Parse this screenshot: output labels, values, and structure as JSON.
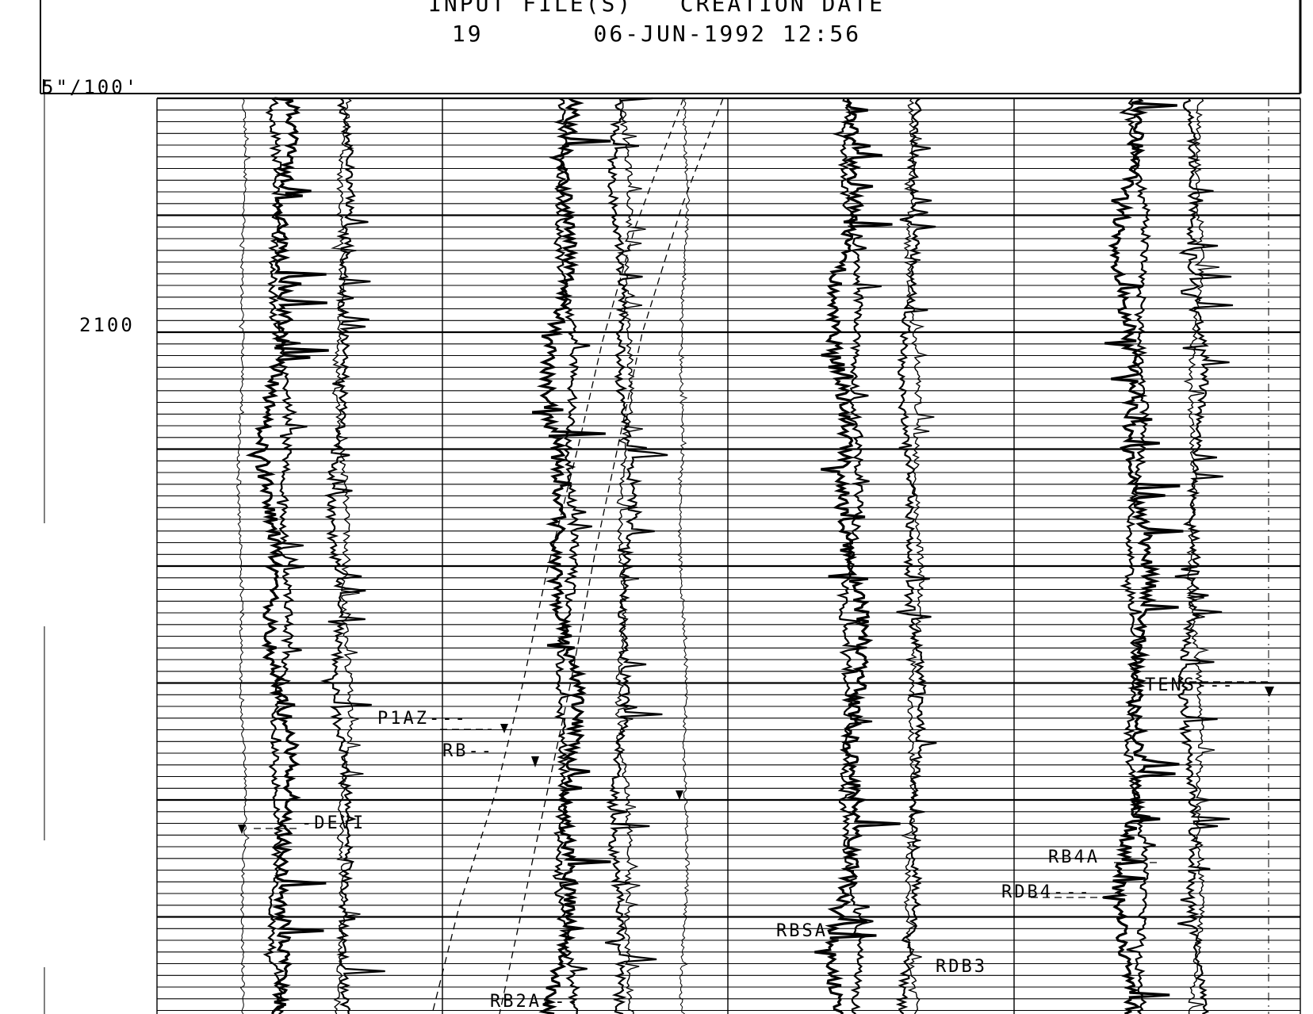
{
  "header": {
    "line1": "INPUT FILE(S)   CREATION DATE",
    "line2": "19       06-JUN-1992 12:56"
  },
  "scale_label": "5\"/100'",
  "depth_label": "2100",
  "curve_labels": {
    "p1az": "P1AZ---",
    "rb": "RB--",
    "rbss": "RBSA",
    "devi": "-DEVI",
    "rb4a": "RB4A",
    "rdb4": "RDB4---",
    "rdb3": "RDB3",
    "tens": "TENS---",
    "rb2a": "RB2A---"
  },
  "colors": {
    "ink": "#000000",
    "paper": "#ffffff"
  }
}
